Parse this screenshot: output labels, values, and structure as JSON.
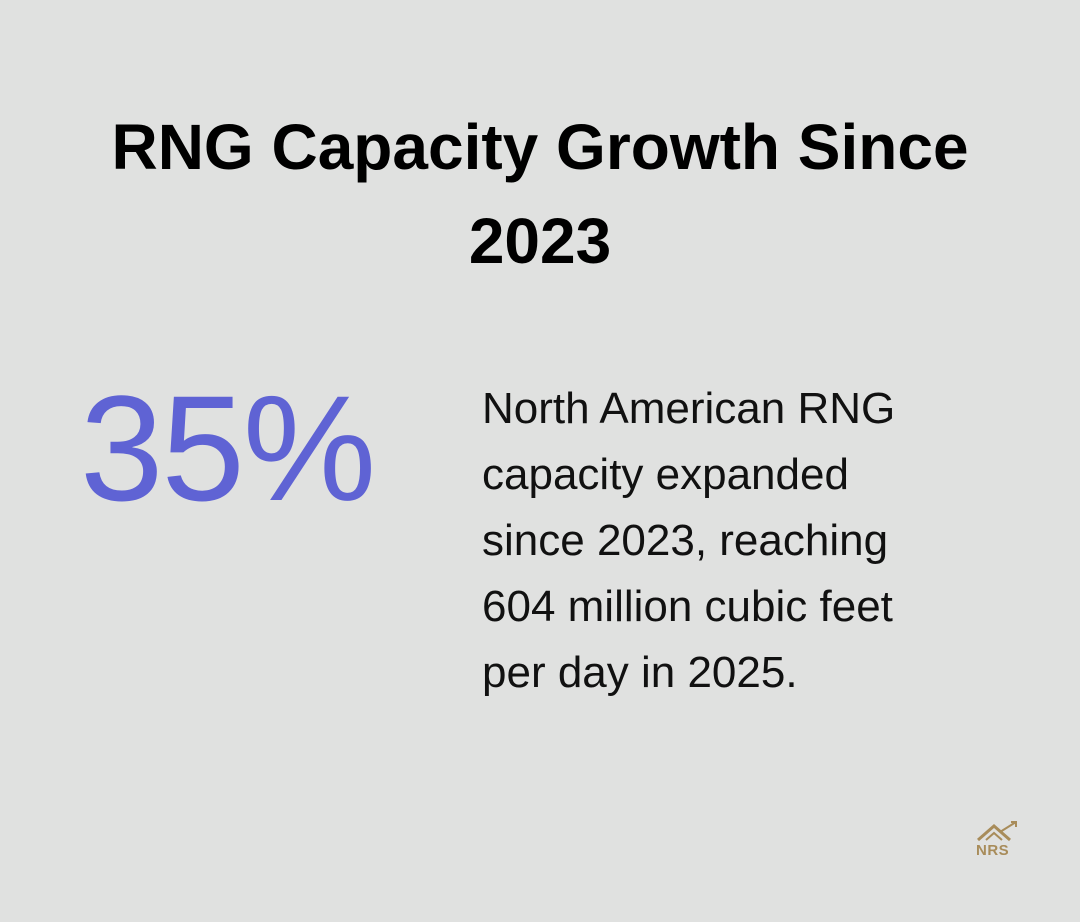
{
  "title": "RNG Capacity Growth Since 2023",
  "stat": {
    "value": "35%",
    "description": {
      "lines": [
        "North American RNG",
        "capacity expanded",
        "since 2023, reaching",
        "604 million cubic feet",
        "per day in 2025."
      ]
    }
  },
  "logo": {
    "text": "NRS"
  }
}
